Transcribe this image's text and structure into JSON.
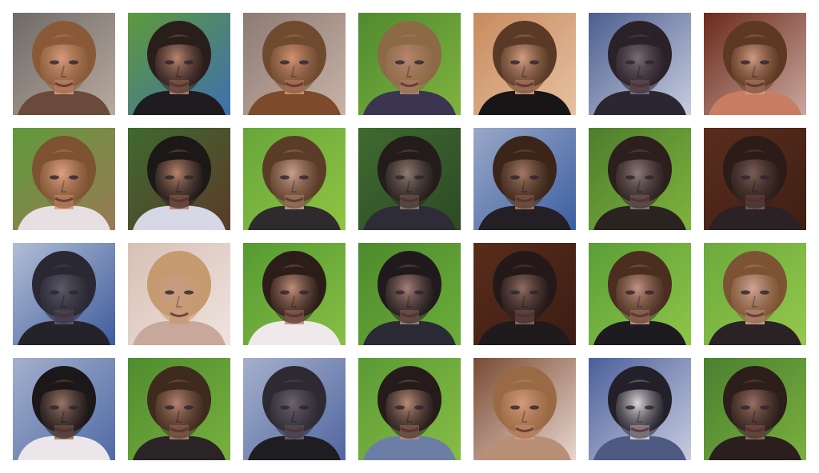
{
  "grid": {
    "rows": 4,
    "columns": 7,
    "tiles": [
      {
        "row": 0,
        "col": 0,
        "bg": "#6f6a66",
        "bg2": "#b8aaa0",
        "skin": "#d79a7f",
        "hair": "#8a5a38",
        "shirt": "#6a4a3a"
      },
      {
        "row": 0,
        "col": 1,
        "bg": "#5e9a3a",
        "bg2": "#3f6fb0",
        "skin": "#b98470",
        "hair": "#2a1e1a",
        "shirt": "#1e1c1e"
      },
      {
        "row": 0,
        "col": 2,
        "bg": "#8c7a74",
        "bg2": "#c9b3a7",
        "skin": "#d49273",
        "hair": "#6e4a2f",
        "shirt": "#7d4a2c"
      },
      {
        "row": 0,
        "col": 3,
        "bg": "#4f8a2f",
        "bg2": "#7fb33f",
        "skin": "#b88671",
        "hair": "#8c6a46",
        "shirt": "#3b3552"
      },
      {
        "row": 0,
        "col": 4,
        "bg": "#c88a5e",
        "bg2": "#e6c2a2",
        "skin": "#d59f82",
        "hair": "#5a3a26",
        "shirt": "#171515"
      },
      {
        "row": 0,
        "col": 5,
        "bg": "#4a5e8e",
        "bg2": "#c9cde0",
        "skin": "#7a6c73",
        "hair": "#2b2128",
        "shirt": "#2a2732"
      },
      {
        "row": 0,
        "col": 6,
        "bg": "#6a2a1a",
        "bg2": "#caa7a0",
        "skin": "#d19a82",
        "hair": "#5d3822",
        "shirt": "#c97d63"
      },
      {
        "row": 1,
        "col": 0,
        "bg": "#5f9a3a",
        "bg2": "#9a7a56",
        "skin": "#e0a182",
        "hair": "#7d5332",
        "shirt": "#e8dfe2"
      },
      {
        "row": 1,
        "col": 1,
        "bg": "#3e6a2f",
        "bg2": "#5b3a2a",
        "skin": "#b9826c",
        "hair": "#1c1817",
        "shirt": "#d7d8e6"
      },
      {
        "row": 1,
        "col": 2,
        "bg": "#66a63a",
        "bg2": "#8fc443",
        "skin": "#caa08c",
        "hair": "#5b3c28",
        "shirt": "#2e2a2e"
      },
      {
        "row": 1,
        "col": 3,
        "bg": "#3f6a30",
        "bg2": "#2d4a25",
        "skin": "#8f7a70",
        "hair": "#241c1a",
        "shirt": "#2e2c36"
      },
      {
        "row": 1,
        "col": 4,
        "bg": "#9aa8c8",
        "bg2": "#3c5fa0",
        "skin": "#a57a66",
        "hair": "#3a2518",
        "shirt": "#231f24"
      },
      {
        "row": 1,
        "col": 5,
        "bg": "#4c7e2c",
        "bg2": "#7fb43e",
        "skin": "#8e7b7a",
        "hair": "#2c1f1d",
        "shirt": "#2a2320"
      },
      {
        "row": 1,
        "col": 6,
        "bg": "#5b2d1d",
        "bg2": "#3e1f14",
        "skin": "#7a5e58",
        "hair": "#2b1c18",
        "shirt": "#2c2124"
      },
      {
        "row": 2,
        "col": 0,
        "bg": "#b2bed6",
        "bg2": "#3e5b9b",
        "skin": "#5c5a6a",
        "hair": "#2a2832",
        "shirt": "#25232a"
      },
      {
        "row": 2,
        "col": 1,
        "bg": "#d6c0b4",
        "bg2": "#efe3df",
        "skin": "#c99c84",
        "hair": "#c69a6f",
        "shirt": "#c7a89a"
      },
      {
        "row": 2,
        "col": 2,
        "bg": "#559a31",
        "bg2": "#86bf45",
        "skin": "#c38e7a",
        "hair": "#2c1d18",
        "shirt": "#f0e9ec"
      },
      {
        "row": 2,
        "col": 3,
        "bg": "#4d8a2d",
        "bg2": "#6cae3a",
        "skin": "#a67f76",
        "hair": "#201a1c",
        "shirt": "#2a2a34"
      },
      {
        "row": 2,
        "col": 4,
        "bg": "#5a2c1a",
        "bg2": "#3a1d14",
        "skin": "#8f6c61",
        "hair": "#241818",
        "shirt": "#1f1a1c"
      },
      {
        "row": 2,
        "col": 5,
        "bg": "#5a9e36",
        "bg2": "#8fc54a",
        "skin": "#c29383",
        "hair": "#4a2e20",
        "shirt": "#1d1b20"
      },
      {
        "row": 2,
        "col": 6,
        "bg": "#6aaa3c",
        "bg2": "#95c84c",
        "skin": "#d2a595",
        "hair": "#7c5434",
        "shirt": "#2b2225"
      },
      {
        "row": 3,
        "col": 0,
        "bg": "#a4b0cc",
        "bg2": "#4f6aa5",
        "skin": "#9a7666",
        "hair": "#1c1718",
        "shirt": "#ece6ea"
      },
      {
        "row": 3,
        "col": 1,
        "bg": "#4f8c2e",
        "bg2": "#78b03f",
        "skin": "#b2836f",
        "hair": "#3f2a1e",
        "shirt": "#2a2426"
      },
      {
        "row": 3,
        "col": 2,
        "bg": "#a5b0cc",
        "bg2": "#5166a0",
        "skin": "#6d6470",
        "hair": "#2d2a34",
        "shirt": "#1f1d22"
      },
      {
        "row": 3,
        "col": 3,
        "bg": "#5b9a35",
        "bg2": "#86bd45",
        "skin": "#ba8b78",
        "hair": "#241b1a",
        "shirt": "#6d7ea6"
      },
      {
        "row": 3,
        "col": 4,
        "bg": "#7a4a32",
        "bg2": "#e8d6cf",
        "skin": "#d49a7d",
        "hair": "#9a6a44",
        "shirt": "#b98f78"
      },
      {
        "row": 3,
        "col": 5,
        "bg": "#4a5e9a",
        "bg2": "#c9cde0",
        "skin": "#dcd6d8",
        "hair": "#24202a",
        "shirt": "#4e5a82"
      },
      {
        "row": 3,
        "col": 6,
        "bg": "#4a8030",
        "bg2": "#7aaf3f",
        "skin": "#9a7062",
        "hair": "#2c1e1a",
        "shirt": "#2a1f1e"
      }
    ]
  }
}
